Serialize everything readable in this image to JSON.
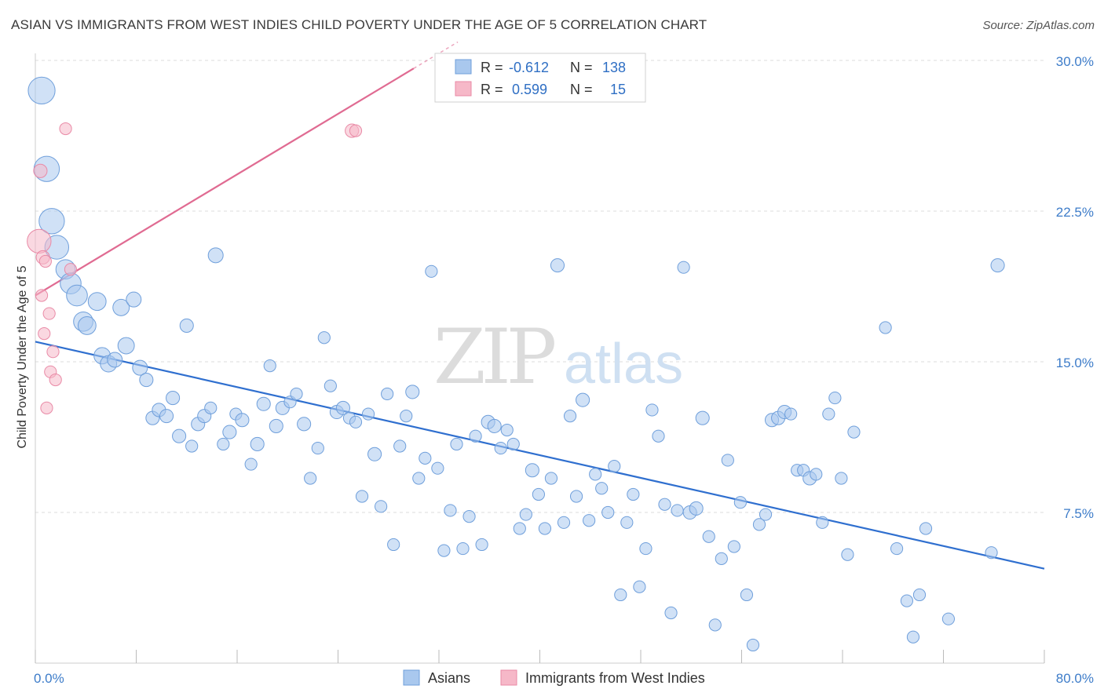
{
  "title": "ASIAN VS IMMIGRANTS FROM WEST INDIES CHILD POVERTY UNDER THE AGE OF 5 CORRELATION CHART",
  "source": "Source: ZipAtlas.com",
  "watermark": {
    "zip": "ZIP",
    "atlas": "atlas"
  },
  "colors": {
    "asians_fill": "#a9c8ee",
    "asians_stroke": "#6f9fdb",
    "asians_line": "#2f6fcf",
    "wi_fill": "#f6b8c8",
    "wi_stroke": "#e98aa6",
    "wi_line": "#e06b92",
    "grid": "#dddddd",
    "tick_label": "#3d7cc9"
  },
  "legend_box": {
    "rows": [
      {
        "r_label": "R =",
        "r_value": "-0.612",
        "n_label": "N =",
        "n_value": "138"
      },
      {
        "r_label": "R =",
        "r_value": "0.599",
        "n_label": "N =",
        "n_value": "15"
      }
    ]
  },
  "chart_data": {
    "type": "scatter",
    "title": "ASIAN VS IMMIGRANTS FROM WEST INDIES CHILD POVERTY UNDER THE AGE OF 5 CORRELATION CHART",
    "xlabel": "",
    "ylabel": "Child Poverty Under the Age of 5",
    "xlim": [
      0,
      80
    ],
    "ylim": [
      0,
      30
    ],
    "x_tick_labels": [
      "0.0%",
      "80.0%"
    ],
    "y_ticks": [
      7.5,
      15.0,
      22.5,
      30.0
    ],
    "y_tick_labels": [
      "7.5%",
      "15.0%",
      "22.5%",
      "30.0%"
    ],
    "grid": true,
    "legend_position": "bottom",
    "series": [
      {
        "name": "Asians",
        "trend": {
          "x": [
            0,
            80
          ],
          "y": [
            16.0,
            4.7
          ]
        },
        "points": [
          [
            0.5,
            28.5,
            18
          ],
          [
            0.9,
            24.6,
            17
          ],
          [
            1.3,
            22.0,
            17
          ],
          [
            1.7,
            20.7,
            16
          ],
          [
            2.4,
            19.6,
            13
          ],
          [
            2.8,
            18.9,
            14
          ],
          [
            3.3,
            18.3,
            14
          ],
          [
            3.8,
            17.0,
            13
          ],
          [
            4.1,
            16.8,
            12
          ],
          [
            4.9,
            18.0,
            12
          ],
          [
            5.3,
            15.3,
            11
          ],
          [
            5.8,
            14.9,
            11
          ],
          [
            6.3,
            15.1,
            10
          ],
          [
            6.8,
            17.7,
            11
          ],
          [
            7.2,
            15.8,
            11
          ],
          [
            7.8,
            18.1,
            10
          ],
          [
            8.3,
            14.7,
            10
          ],
          [
            8.8,
            14.1,
            9
          ],
          [
            9.3,
            12.2,
            9
          ],
          [
            9.8,
            12.6,
            9
          ],
          [
            10.4,
            12.3,
            9
          ],
          [
            10.9,
            13.2,
            9
          ],
          [
            11.4,
            11.3,
            9
          ],
          [
            12.0,
            16.8,
            9
          ],
          [
            12.4,
            10.8,
            8
          ],
          [
            12.9,
            11.9,
            9
          ],
          [
            13.4,
            12.3,
            9
          ],
          [
            13.9,
            12.7,
            8
          ],
          [
            14.3,
            20.3,
            10
          ],
          [
            14.9,
            10.9,
            8
          ],
          [
            15.4,
            11.5,
            9
          ],
          [
            15.9,
            12.4,
            8
          ],
          [
            16.4,
            12.1,
            9
          ],
          [
            17.1,
            9.9,
            8
          ],
          [
            17.6,
            10.9,
            9
          ],
          [
            18.1,
            12.9,
            9
          ],
          [
            18.6,
            14.8,
            8
          ],
          [
            19.1,
            11.8,
            9
          ],
          [
            19.6,
            12.7,
            9
          ],
          [
            20.2,
            13.0,
            8
          ],
          [
            20.7,
            13.4,
            8
          ],
          [
            21.3,
            11.9,
            9
          ],
          [
            21.8,
            9.2,
            8
          ],
          [
            22.4,
            10.7,
            8
          ],
          [
            22.9,
            16.2,
            8
          ],
          [
            23.4,
            13.8,
            8
          ],
          [
            23.9,
            12.5,
            9
          ],
          [
            24.4,
            12.7,
            9
          ],
          [
            24.9,
            12.2,
            8
          ],
          [
            25.4,
            12.0,
            8
          ],
          [
            25.9,
            8.3,
            8
          ],
          [
            26.4,
            12.4,
            8
          ],
          [
            26.9,
            10.4,
            9
          ],
          [
            27.4,
            7.8,
            8
          ],
          [
            27.9,
            13.4,
            8
          ],
          [
            28.4,
            5.9,
            8
          ],
          [
            28.9,
            10.8,
            8
          ],
          [
            29.4,
            12.3,
            8
          ],
          [
            29.9,
            13.5,
            9
          ],
          [
            30.4,
            9.2,
            8
          ],
          [
            30.9,
            10.2,
            8
          ],
          [
            31.4,
            19.5,
            8
          ],
          [
            31.9,
            9.7,
            8
          ],
          [
            32.4,
            5.6,
            8
          ],
          [
            32.9,
            7.6,
            8
          ],
          [
            33.4,
            10.9,
            8
          ],
          [
            33.9,
            5.7,
            8
          ],
          [
            34.4,
            7.3,
            8
          ],
          [
            34.9,
            11.3,
            8
          ],
          [
            35.4,
            5.9,
            8
          ],
          [
            35.9,
            12.0,
            9
          ],
          [
            36.4,
            11.8,
            9
          ],
          [
            36.9,
            10.7,
            8
          ],
          [
            37.4,
            11.6,
            8
          ],
          [
            37.9,
            10.9,
            8
          ],
          [
            38.4,
            6.7,
            8
          ],
          [
            38.9,
            7.4,
            8
          ],
          [
            39.4,
            9.6,
            9
          ],
          [
            39.9,
            8.4,
            8
          ],
          [
            40.4,
            6.7,
            8
          ],
          [
            40.9,
            9.2,
            8
          ],
          [
            41.4,
            19.8,
            9
          ],
          [
            41.9,
            7.0,
            8
          ],
          [
            42.4,
            12.3,
            8
          ],
          [
            42.9,
            8.3,
            8
          ],
          [
            43.4,
            13.1,
            9
          ],
          [
            43.9,
            7.1,
            8
          ],
          [
            44.4,
            9.4,
            8
          ],
          [
            44.9,
            8.7,
            8
          ],
          [
            45.4,
            7.5,
            8
          ],
          [
            45.9,
            9.8,
            8
          ],
          [
            46.4,
            3.4,
            8
          ],
          [
            46.9,
            7.0,
            8
          ],
          [
            47.4,
            8.4,
            8
          ],
          [
            47.9,
            3.8,
            8
          ],
          [
            48.4,
            5.7,
            8
          ],
          [
            48.9,
            12.6,
            8
          ],
          [
            49.4,
            11.3,
            8
          ],
          [
            49.9,
            7.9,
            8
          ],
          [
            50.4,
            2.5,
            8
          ],
          [
            50.9,
            7.6,
            8
          ],
          [
            51.4,
            19.7,
            8
          ],
          [
            51.9,
            7.5,
            9
          ],
          [
            52.4,
            7.7,
            9
          ],
          [
            52.9,
            12.2,
            9
          ],
          [
            53.4,
            6.3,
            8
          ],
          [
            53.9,
            1.9,
            8
          ],
          [
            54.4,
            5.2,
            8
          ],
          [
            54.9,
            10.1,
            8
          ],
          [
            55.4,
            5.8,
            8
          ],
          [
            55.9,
            8.0,
            8
          ],
          [
            56.4,
            3.4,
            8
          ],
          [
            56.9,
            0.9,
            8
          ],
          [
            57.4,
            6.9,
            8
          ],
          [
            57.9,
            7.4,
            8
          ],
          [
            58.4,
            12.1,
            9
          ],
          [
            58.9,
            12.2,
            9
          ],
          [
            59.4,
            12.5,
            9
          ],
          [
            59.9,
            12.4,
            8
          ],
          [
            60.4,
            9.6,
            8
          ],
          [
            60.9,
            9.6,
            8
          ],
          [
            61.4,
            9.2,
            9
          ],
          [
            61.9,
            9.4,
            8
          ],
          [
            62.4,
            7.0,
            8
          ],
          [
            62.9,
            12.4,
            8
          ],
          [
            63.4,
            13.2,
            8
          ],
          [
            63.9,
            9.2,
            8
          ],
          [
            64.4,
            5.4,
            8
          ],
          [
            64.9,
            11.5,
            8
          ],
          [
            67.4,
            16.7,
            8
          ],
          [
            68.3,
            5.7,
            8
          ],
          [
            69.1,
            3.1,
            8
          ],
          [
            69.6,
            1.3,
            8
          ],
          [
            70.1,
            3.4,
            8
          ],
          [
            70.6,
            6.7,
            8
          ],
          [
            72.4,
            2.2,
            8
          ],
          [
            75.8,
            5.5,
            8
          ],
          [
            76.3,
            19.8,
            9
          ]
        ]
      },
      {
        "name": "Immigrants from West Indies",
        "trend": {
          "x": [
            0,
            30
          ],
          "y": [
            18.3,
            29.6
          ]
        },
        "trend_solid_until_x": 30,
        "trend_dashed_until_x": 33.5,
        "points": [
          [
            0.3,
            21.0,
            16
          ],
          [
            0.4,
            24.5,
            9
          ],
          [
            0.5,
            18.3,
            8
          ],
          [
            0.6,
            20.2,
            9
          ],
          [
            0.7,
            16.4,
            8
          ],
          [
            0.8,
            20.0,
            8
          ],
          [
            0.9,
            12.7,
            8
          ],
          [
            1.1,
            17.4,
            8
          ],
          [
            1.2,
            14.5,
            8
          ],
          [
            1.4,
            15.5,
            8
          ],
          [
            1.6,
            14.1,
            8
          ],
          [
            2.4,
            26.6,
            8
          ],
          [
            2.8,
            19.6,
            8
          ],
          [
            25.1,
            26.5,
            9
          ],
          [
            25.4,
            26.5,
            8
          ]
        ]
      }
    ]
  },
  "bottom_legend": {
    "items": [
      {
        "label": "Asians"
      },
      {
        "label": "Immigrants from West Indies"
      }
    ]
  }
}
